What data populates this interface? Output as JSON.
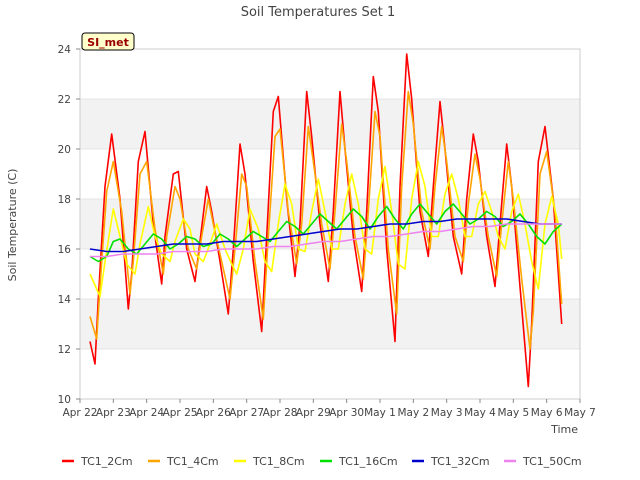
{
  "chart_data": {
    "type": "line",
    "title": "Soil Temperatures Set 1",
    "xlabel": "Time",
    "ylabel": "Soil Temperature (C)",
    "badge": "SI_met",
    "xlim": [
      0,
      15
    ],
    "ylim": [
      10,
      24
    ],
    "x_ticks": [
      {
        "x": 0,
        "label": "Apr 22"
      },
      {
        "x": 1,
        "label": "Apr 23"
      },
      {
        "x": 2,
        "label": "Apr 24"
      },
      {
        "x": 3,
        "label": "Apr 25"
      },
      {
        "x": 4,
        "label": "Apr 26"
      },
      {
        "x": 5,
        "label": "Apr 27"
      },
      {
        "x": 6,
        "label": "Apr 28"
      },
      {
        "x": 7,
        "label": "Apr 29"
      },
      {
        "x": 8,
        "label": "Apr 30"
      },
      {
        "x": 9,
        "label": "May 1"
      },
      {
        "x": 10,
        "label": "May 2"
      },
      {
        "x": 11,
        "label": "May 3"
      },
      {
        "x": 12,
        "label": "May 4"
      },
      {
        "x": 13,
        "label": "May 5"
      },
      {
        "x": 14,
        "label": "May 6"
      },
      {
        "x": 15,
        "label": "May 7"
      }
    ],
    "y_ticks": [
      10,
      12,
      14,
      16,
      18,
      20,
      22,
      24
    ],
    "bands": [
      [
        12,
        14
      ],
      [
        16,
        18
      ],
      [
        20,
        22
      ]
    ],
    "legend_position": "bottom",
    "series": [
      {
        "name": "TC1_2Cm",
        "color": "#ff0000",
        "x": [
          0.3,
          0.45,
          0.55,
          0.75,
          0.95,
          1.2,
          1.45,
          1.55,
          1.75,
          1.95,
          2.2,
          2.45,
          2.55,
          2.8,
          2.95,
          3.2,
          3.45,
          3.6,
          3.8,
          3.95,
          4.2,
          4.45,
          4.6,
          4.8,
          4.95,
          5.2,
          5.45,
          5.6,
          5.8,
          5.95,
          6.2,
          6.45,
          6.6,
          6.8,
          6.95,
          7.2,
          7.45,
          7.6,
          7.8,
          7.95,
          8.2,
          8.45,
          8.6,
          8.8,
          8.95,
          9.2,
          9.45,
          9.6,
          9.8,
          9.95,
          10.2,
          10.45,
          10.6,
          10.8,
          10.95,
          11.2,
          11.45,
          11.6,
          11.8,
          11.95,
          12.2,
          12.45,
          12.6,
          12.8,
          12.95,
          13.2,
          13.45,
          13.55,
          13.75,
          13.95,
          14.2,
          14.45
        ],
        "y": [
          12.3,
          11.4,
          14.0,
          18.5,
          20.6,
          18.0,
          13.6,
          15.0,
          19.5,
          20.7,
          17.0,
          14.6,
          16.5,
          19.0,
          19.1,
          16.0,
          14.7,
          16.3,
          18.5,
          17.5,
          15.5,
          13.4,
          16.0,
          20.2,
          19.0,
          15.5,
          12.7,
          16.5,
          21.5,
          22.1,
          18.0,
          14.9,
          17.0,
          22.3,
          20.5,
          17.0,
          14.7,
          17.5,
          22.3,
          20.0,
          16.5,
          14.3,
          17.5,
          22.9,
          21.5,
          16.0,
          12.3,
          18.5,
          23.8,
          22.0,
          17.5,
          15.7,
          18.5,
          21.9,
          20.0,
          16.5,
          15.0,
          18.0,
          20.6,
          19.5,
          16.5,
          14.5,
          17.0,
          20.2,
          18.5,
          14.5,
          10.5,
          13.0,
          19.5,
          20.9,
          18.0,
          13.0
        ]
      },
      {
        "name": "TC1_4Cm",
        "color": "#ffa500",
        "x": [
          0.3,
          0.5,
          0.6,
          0.8,
          1.0,
          1.25,
          1.5,
          1.6,
          1.8,
          2.0,
          2.25,
          2.5,
          2.6,
          2.85,
          3.0,
          3.25,
          3.5,
          3.65,
          3.85,
          4.0,
          4.25,
          4.5,
          4.65,
          4.85,
          5.0,
          5.25,
          5.5,
          5.65,
          5.85,
          6.0,
          6.25,
          6.5,
          6.65,
          6.85,
          7.0,
          7.25,
          7.5,
          7.65,
          7.85,
          8.0,
          8.25,
          8.5,
          8.65,
          8.85,
          9.0,
          9.25,
          9.5,
          9.65,
          9.85,
          10.0,
          10.25,
          10.5,
          10.65,
          10.85,
          11.0,
          11.25,
          11.5,
          11.65,
          11.85,
          12.0,
          12.25,
          12.5,
          12.65,
          12.85,
          13.0,
          13.25,
          13.5,
          13.6,
          13.8,
          14.0,
          14.25,
          14.45
        ],
        "y": [
          13.3,
          12.4,
          14.5,
          18.3,
          19.5,
          17.5,
          14.2,
          15.5,
          19.0,
          19.5,
          16.8,
          15.0,
          16.5,
          18.5,
          18.0,
          16.0,
          15.2,
          16.5,
          18.0,
          17.0,
          15.5,
          14.0,
          16.0,
          19.0,
          18.5,
          15.5,
          13.2,
          16.5,
          20.5,
          20.8,
          17.5,
          15.4,
          17.0,
          20.9,
          19.5,
          17.0,
          15.2,
          17.5,
          21.0,
          19.5,
          16.5,
          14.8,
          17.5,
          21.5,
          20.5,
          16.0,
          13.4,
          18.5,
          22.3,
          21.0,
          17.5,
          16.0,
          18.5,
          20.9,
          19.5,
          16.5,
          15.5,
          17.8,
          19.8,
          18.8,
          16.5,
          14.9,
          17.0,
          19.5,
          18.0,
          14.8,
          12.0,
          13.5,
          19.0,
          19.9,
          17.5,
          13.8
        ]
      },
      {
        "name": "TC1_8Cm",
        "color": "#ffff00",
        "x": [
          0.3,
          0.6,
          0.75,
          1.0,
          1.2,
          1.4,
          1.65,
          1.8,
          2.05,
          2.25,
          2.45,
          2.7,
          2.85,
          3.1,
          3.3,
          3.45,
          3.7,
          3.9,
          4.1,
          4.35,
          4.55,
          4.7,
          4.9,
          5.1,
          5.35,
          5.55,
          5.75,
          5.95,
          6.15,
          6.35,
          6.55,
          6.75,
          6.95,
          7.15,
          7.35,
          7.55,
          7.75,
          7.95,
          8.15,
          8.35,
          8.55,
          8.75,
          8.95,
          9.15,
          9.35,
          9.55,
          9.75,
          9.95,
          10.15,
          10.35,
          10.55,
          10.75,
          10.95,
          11.15,
          11.35,
          11.55,
          11.75,
          11.95,
          12.15,
          12.35,
          12.55,
          12.75,
          12.95,
          13.15,
          13.35,
          13.55,
          13.75,
          13.95,
          14.15,
          14.35,
          14.45
        ],
        "y": [
          15.0,
          14.1,
          15.5,
          17.6,
          16.5,
          15.4,
          15.0,
          16.2,
          17.7,
          16.5,
          15.8,
          15.5,
          16.3,
          17.2,
          16.8,
          15.8,
          15.5,
          16.2,
          17.0,
          16.0,
          15.4,
          15.0,
          16.0,
          17.6,
          16.8,
          15.5,
          15.1,
          17.0,
          18.6,
          17.8,
          16.0,
          15.9,
          17.5,
          18.8,
          17.5,
          16.0,
          16.0,
          17.8,
          19.0,
          17.8,
          16.0,
          15.8,
          18.0,
          19.3,
          17.5,
          15.4,
          15.2,
          18.0,
          19.5,
          18.5,
          16.5,
          16.5,
          18.2,
          19.0,
          18.0,
          16.5,
          16.5,
          17.8,
          18.3,
          17.5,
          16.5,
          16.0,
          17.5,
          18.2,
          17.0,
          15.5,
          14.4,
          17.0,
          18.1,
          17.0,
          15.6
        ]
      },
      {
        "name": "TC1_16Cm",
        "color": "#00e000",
        "x": [
          0.3,
          0.55,
          0.8,
          1.0,
          1.2,
          1.45,
          1.7,
          1.95,
          2.2,
          2.45,
          2.7,
          2.95,
          3.2,
          3.45,
          3.7,
          3.95,
          4.2,
          4.45,
          4.7,
          4.95,
          5.2,
          5.45,
          5.7,
          5.95,
          6.2,
          6.45,
          6.7,
          6.95,
          7.2,
          7.45,
          7.7,
          7.95,
          8.2,
          8.45,
          8.7,
          8.95,
          9.2,
          9.45,
          9.7,
          9.95,
          10.2,
          10.45,
          10.7,
          10.95,
          11.2,
          11.45,
          11.7,
          11.95,
          12.2,
          12.45,
          12.7,
          12.95,
          13.2,
          13.45,
          13.7,
          13.95,
          14.2,
          14.45
        ],
        "y": [
          15.7,
          15.5,
          15.7,
          16.3,
          16.4,
          16.0,
          15.8,
          16.2,
          16.6,
          16.4,
          16.0,
          16.2,
          16.5,
          16.4,
          16.1,
          16.2,
          16.6,
          16.4,
          16.1,
          16.4,
          16.7,
          16.5,
          16.3,
          16.7,
          17.1,
          16.9,
          16.6,
          17.0,
          17.4,
          17.1,
          16.8,
          17.2,
          17.6,
          17.3,
          16.8,
          17.3,
          17.7,
          17.2,
          16.8,
          17.4,
          17.8,
          17.4,
          17.0,
          17.5,
          17.8,
          17.4,
          17.0,
          17.2,
          17.5,
          17.3,
          16.9,
          17.1,
          17.4,
          17.0,
          16.5,
          16.2,
          16.7,
          17.0
        ]
      },
      {
        "name": "TC1_32Cm",
        "color": "#0000cc",
        "x": [
          0.3,
          0.8,
          1.3,
          1.8,
          2.3,
          2.8,
          3.3,
          3.8,
          4.3,
          4.8,
          5.3,
          5.8,
          6.3,
          6.8,
          7.3,
          7.8,
          8.3,
          8.8,
          9.3,
          9.8,
          10.3,
          10.8,
          11.3,
          11.8,
          12.3,
          12.8,
          13.3,
          13.8,
          14.3,
          14.45
        ],
        "y": [
          16.0,
          15.9,
          15.9,
          16.0,
          16.1,
          16.2,
          16.2,
          16.2,
          16.3,
          16.3,
          16.3,
          16.4,
          16.5,
          16.6,
          16.7,
          16.8,
          16.8,
          16.9,
          17.0,
          17.0,
          17.1,
          17.1,
          17.2,
          17.2,
          17.2,
          17.2,
          17.1,
          17.0,
          17.0,
          17.0
        ]
      },
      {
        "name": "TC1_50Cm",
        "color": "#ee82ee",
        "x": [
          0.3,
          0.8,
          1.3,
          1.8,
          2.3,
          2.8,
          3.3,
          3.8,
          4.3,
          4.8,
          5.3,
          5.8,
          6.3,
          6.8,
          7.3,
          7.8,
          8.3,
          8.8,
          9.3,
          9.8,
          10.3,
          10.8,
          11.3,
          11.8,
          12.3,
          12.8,
          13.3,
          13.8,
          14.3,
          14.45
        ],
        "y": [
          15.7,
          15.7,
          15.8,
          15.8,
          15.8,
          15.9,
          15.9,
          15.9,
          16.0,
          16.0,
          16.0,
          16.1,
          16.1,
          16.2,
          16.3,
          16.3,
          16.4,
          16.5,
          16.5,
          16.6,
          16.7,
          16.7,
          16.8,
          16.9,
          16.9,
          17.0,
          17.0,
          17.0,
          17.0,
          17.0
        ]
      }
    ]
  }
}
